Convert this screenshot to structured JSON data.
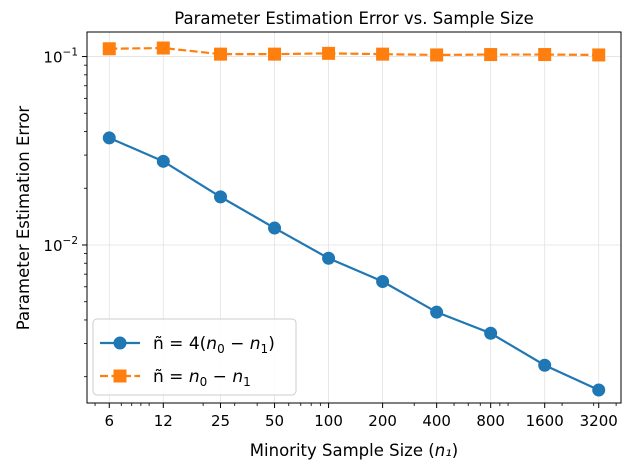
{
  "chart_data": {
    "type": "line",
    "title": "Parameter Estimation Error vs. Sample Size",
    "xlabel": "Minority Sample Size",
    "xlabel_math": "n₁",
    "ylabel": "Parameter Estimation Error",
    "yscale": "log",
    "xscale": "log",
    "ylim": [
      0.00145,
      0.135
    ],
    "grid": true,
    "legend_position": "lower-left",
    "x": [
      6,
      12,
      25,
      50,
      100,
      200,
      400,
      800,
      1600,
      3200
    ],
    "x_tick_labels": [
      "6",
      "12",
      "25",
      "50",
      "100",
      "200",
      "400",
      "800",
      "1600",
      "3200"
    ],
    "y_ticks": [
      {
        "value": 0.1,
        "base": "10",
        "exp": "−1"
      },
      {
        "value": 0.01,
        "base": "10",
        "exp": "−2"
      }
    ],
    "series": [
      {
        "name": "ñ = 4(n₀ − n₁)",
        "legend_lead": "ñ = 4(",
        "legend_parts": [
          "n",
          "0",
          " − ",
          "n",
          "1",
          ")"
        ],
        "color": "#1f77b4",
        "marker": "circle",
        "linestyle": "solid",
        "values": [
          0.037,
          0.0278,
          0.018,
          0.0123,
          0.0085,
          0.0064,
          0.0044,
          0.0034,
          0.0023,
          0.0017
        ]
      },
      {
        "name": "ñ = n₀ − n₁",
        "legend_lead": "ñ = ",
        "legend_parts": [
          "n",
          "0",
          " − ",
          "n",
          "1",
          ""
        ],
        "color": "#ff7f0e",
        "marker": "square",
        "linestyle": "dashed",
        "values": [
          0.11,
          0.111,
          0.103,
          0.103,
          0.104,
          0.103,
          0.102,
          0.1025,
          0.1025,
          0.102
        ]
      }
    ]
  }
}
